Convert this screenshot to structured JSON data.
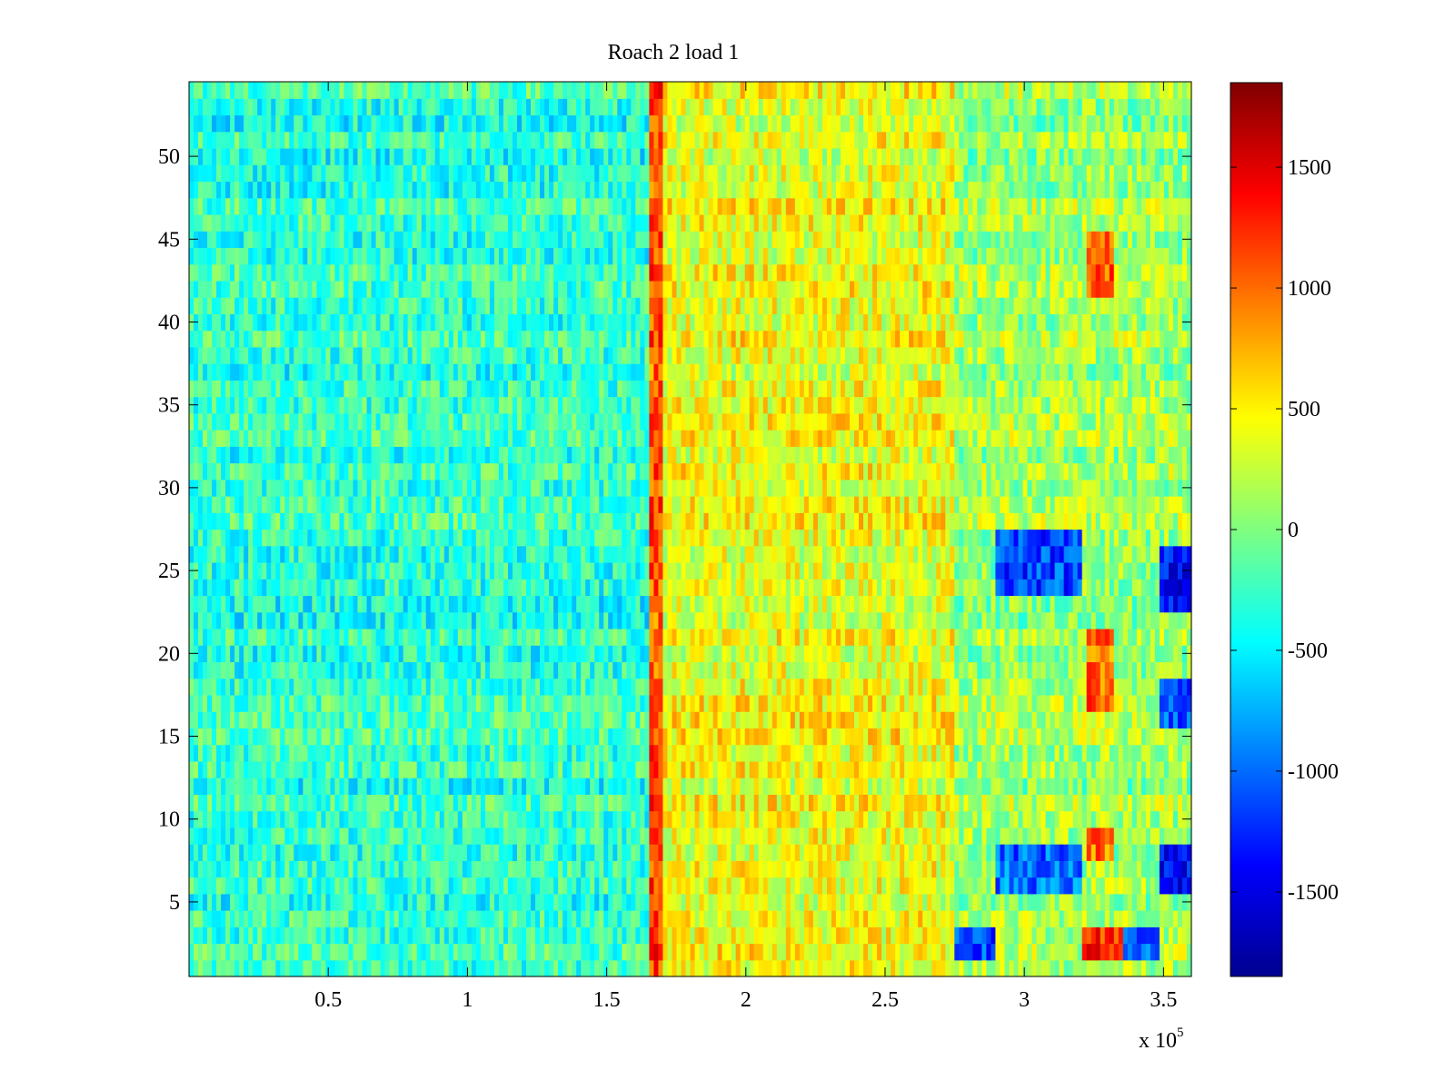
{
  "chart_data": {
    "type": "heatmap",
    "title": "Roach 2 load 1",
    "xlabel": "",
    "ylabel": "",
    "xlim": [
      0,
      360000
    ],
    "ylim": [
      0.5,
      54.5
    ],
    "x_ticks": [
      0.5,
      1,
      1.5,
      2,
      2.5,
      3,
      3.5
    ],
    "x_tick_labels": [
      "0.5",
      "1",
      "1.5",
      "2",
      "2.5",
      "3",
      "3.5"
    ],
    "x_exponent_label": "x 10",
    "x_exponent_power": "5",
    "y_ticks": [
      5,
      10,
      15,
      20,
      25,
      30,
      35,
      40,
      45,
      50
    ],
    "y_tick_labels": [
      "5",
      "10",
      "15",
      "20",
      "25",
      "30",
      "35",
      "40",
      "45",
      "50"
    ],
    "rows": 54,
    "colormap": "jet",
    "clim": [
      -1850,
      1850
    ],
    "colorbar_ticks": [
      1500,
      1000,
      500,
      0,
      -500,
      -1000,
      -1500
    ],
    "colorbar_tick_labels": [
      "1500",
      "1000",
      "500",
      "0",
      "-500",
      "-1000",
      "-1500"
    ],
    "grid": false,
    "regions": [
      {
        "feature": "baseline left region",
        "x_range": [
          0,
          165000
        ],
        "rows": [
          1,
          54
        ],
        "mean_value": -300
      },
      {
        "feature": "high vertical stripe",
        "x_range": [
          166000,
          170000
        ],
        "rows": [
          1,
          54
        ],
        "mean_value": 1100
      },
      {
        "feature": "elevated middle region",
        "x_range": [
          170000,
          275000
        ],
        "rows": [
          1,
          54
        ],
        "mean_value": 400
      },
      {
        "feature": "mixed right region",
        "x_range": [
          275000,
          360000
        ],
        "rows": [
          1,
          54
        ],
        "mean_value": 100
      },
      {
        "feature": "low patch",
        "x_range": [
          290000,
          320000
        ],
        "rows": [
          24,
          27
        ],
        "mean_value": -1100
      },
      {
        "feature": "low patch",
        "x_range": [
          290000,
          320000
        ],
        "rows": [
          6,
          8
        ],
        "mean_value": -1000
      },
      {
        "feature": "low patch",
        "x_range": [
          275000,
          290000
        ],
        "rows": [
          2,
          3
        ],
        "mean_value": -1200
      },
      {
        "feature": "high patch",
        "x_range": [
          320000,
          335000
        ],
        "rows": [
          2,
          3
        ],
        "mean_value": 1200
      },
      {
        "feature": "low patch",
        "x_range": [
          335000,
          348000
        ],
        "rows": [
          2,
          3
        ],
        "mean_value": -1200
      },
      {
        "feature": "low patch",
        "x_range": [
          348000,
          360000
        ],
        "rows": [
          6,
          8
        ],
        "mean_value": -1400
      },
      {
        "feature": "low patch",
        "x_range": [
          348000,
          360000
        ],
        "rows": [
          23,
          26
        ],
        "mean_value": -1300
      },
      {
        "feature": "high patch",
        "x_range": [
          322000,
          333000
        ],
        "rows": [
          42,
          45
        ],
        "mean_value": 1000
      },
      {
        "feature": "high patch",
        "x_range": [
          322000,
          333000
        ],
        "rows": [
          17,
          21
        ],
        "mean_value": 1000
      },
      {
        "feature": "high patch",
        "x_range": [
          322000,
          333000
        ],
        "rows": [
          8,
          9
        ],
        "mean_value": 1000
      },
      {
        "feature": "low patch",
        "x_range": [
          348000,
          360000
        ],
        "rows": [
          16,
          18
        ],
        "mean_value": -1200
      }
    ]
  }
}
